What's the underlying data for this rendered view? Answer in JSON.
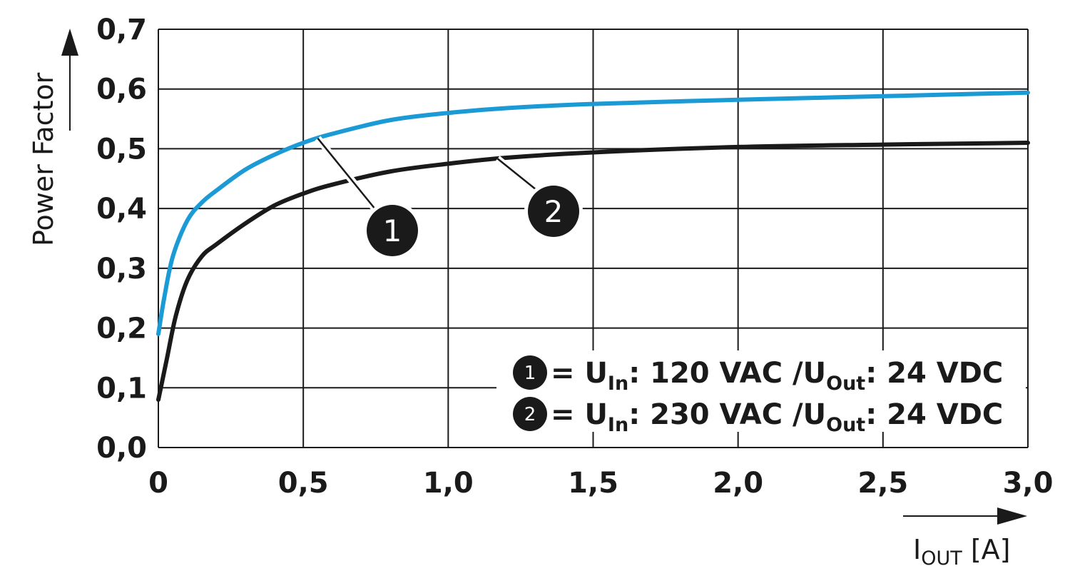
{
  "chart_data": {
    "type": "line",
    "xlabel": {
      "main": "I",
      "sub": "OUT",
      "unit": " [A]"
    },
    "ylabel": "Power Factor",
    "xlim": [
      0,
      3.0
    ],
    "ylim": [
      0,
      0.7
    ],
    "x_ticks": [
      0,
      0.5,
      1.0,
      1.5,
      2.0,
      2.5,
      3.0
    ],
    "x_tick_labels": [
      "0",
      "0,5",
      "1,0",
      "1,5",
      "2,0",
      "2,5",
      "3,0"
    ],
    "y_ticks": [
      0,
      0.1,
      0.2,
      0.3,
      0.4,
      0.5,
      0.6,
      0.7
    ],
    "y_tick_labels": [
      "0,0",
      "0,1",
      "0,2",
      "0,3",
      "0,4",
      "0,5",
      "0,6",
      "0,7"
    ],
    "grid": true,
    "legend_position": "bottom-right",
    "series": [
      {
        "id": "1",
        "color": "#1b9ad6",
        "legend": {
          "num": "1",
          "a": "= U",
          "a_sub": "In",
          "b": ": 120 VAC /U",
          "b_sub": "Out",
          "c": ": 24 VDC"
        },
        "x": [
          0,
          0.02,
          0.05,
          0.1,
          0.15,
          0.2,
          0.3,
          0.4,
          0.5,
          0.6,
          0.8,
          1.0,
          1.2,
          1.5,
          2.0,
          2.5,
          3.0
        ],
        "y": [
          0.19,
          0.25,
          0.32,
          0.38,
          0.41,
          0.43,
          0.465,
          0.49,
          0.51,
          0.525,
          0.548,
          0.56,
          0.568,
          0.575,
          0.582,
          0.588,
          0.594
        ]
      },
      {
        "id": "2",
        "color": "#1a1a1a",
        "legend": {
          "num": "2",
          "a": "= U",
          "a_sub": "In",
          "b": ": 230 VAC /U",
          "b_sub": "Out",
          "c": ": 24 VDC"
        },
        "x": [
          0,
          0.03,
          0.06,
          0.1,
          0.15,
          0.2,
          0.3,
          0.4,
          0.5,
          0.6,
          0.8,
          1.0,
          1.2,
          1.5,
          2.0,
          2.5,
          3.0
        ],
        "y": [
          0.08,
          0.15,
          0.22,
          0.28,
          0.32,
          0.34,
          0.375,
          0.405,
          0.425,
          0.44,
          0.462,
          0.475,
          0.485,
          0.494,
          0.503,
          0.507,
          0.51
        ]
      }
    ],
    "callouts": [
      {
        "label": "1",
        "series": 0,
        "at_x": 0.55
      },
      {
        "label": "2",
        "series": 1,
        "at_x": 1.17
      }
    ]
  }
}
